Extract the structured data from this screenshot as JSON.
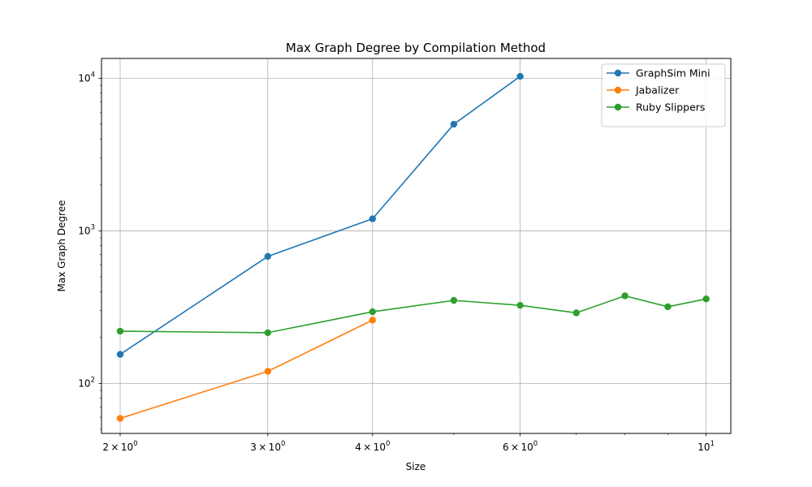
{
  "chart_data": {
    "type": "line",
    "title": "Max Graph Degree by Compilation Method",
    "xlabel": "Size",
    "ylabel": "Max Graph Degree",
    "x_scale": "log",
    "y_scale": "log",
    "xlim": [
      1.9,
      10.7
    ],
    "ylim": [
      47,
      13500
    ],
    "x_ticks": [
      {
        "value": 2,
        "base": "2",
        "exp": "0"
      },
      {
        "value": 3,
        "base": "3",
        "exp": "0"
      },
      {
        "value": 4,
        "base": "4",
        "exp": "0"
      },
      {
        "value": 6,
        "base": "6",
        "exp": "0"
      },
      {
        "value": 10,
        "base": "10",
        "exp": "1"
      }
    ],
    "x_minor_ticks": [
      5,
      7,
      8,
      9
    ],
    "y_ticks": [
      {
        "value": 100,
        "base": "10",
        "exp": "2"
      },
      {
        "value": 1000,
        "base": "10",
        "exp": "3"
      },
      {
        "value": 10000,
        "base": "10",
        "exp": "4"
      }
    ],
    "y_minor_ticks": [
      50,
      60,
      70,
      80,
      90,
      200,
      300,
      400,
      500,
      600,
      700,
      800,
      900,
      2000,
      3000,
      4000,
      5000,
      6000,
      7000,
      8000,
      9000
    ],
    "grid": true,
    "legend_position": "top-right",
    "series": [
      {
        "name": "GraphSim Mini",
        "color": "#1f77b4",
        "x": [
          2,
          3,
          4,
          5,
          6
        ],
        "y": [
          155,
          680,
          1200,
          5000,
          10300
        ]
      },
      {
        "name": "Jabalizer",
        "color": "#ff7f0e",
        "x": [
          2,
          3,
          4
        ],
        "y": [
          59,
          120,
          260
        ]
      },
      {
        "name": "Ruby Slippers",
        "color": "#2ca02c",
        "x": [
          2,
          3,
          4,
          5,
          6,
          7,
          8,
          9,
          10
        ],
        "y": [
          220,
          215,
          295,
          350,
          325,
          290,
          375,
          318,
          358
        ]
      }
    ]
  }
}
